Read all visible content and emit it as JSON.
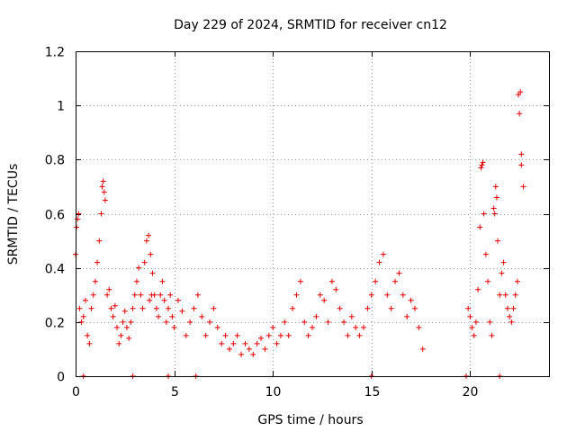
{
  "chart_data": {
    "type": "scatter",
    "title": "Day 229 of 2024, SRMTID for receiver cn12",
    "xlabel": "GPS time / hours",
    "ylabel": "SRMTID / TECUs",
    "xlim": [
      0,
      24
    ],
    "ylim": [
      0,
      1.2
    ],
    "xticks": [
      0,
      5,
      10,
      15,
      20
    ],
    "xtick_labels": [
      "0",
      "5",
      "10",
      "15",
      "20"
    ],
    "yticks": [
      0,
      0.2,
      0.4,
      0.6,
      0.8,
      1.0,
      1.2
    ],
    "ytick_labels": [
      "0",
      "0.2",
      "0.4",
      "0.6",
      "0.8",
      "1",
      "1.2"
    ],
    "grid": true,
    "marker": "plus",
    "color": "#e00000",
    "series": [
      {
        "name": "SRMTID",
        "x": [
          0.0,
          0.1,
          0.2,
          0.3,
          0.4,
          0.5,
          0.6,
          0.7,
          0.8,
          0.9,
          1.0,
          1.1,
          1.2,
          1.3,
          1.4,
          1.5,
          1.6,
          1.7,
          1.8,
          1.9,
          2.0,
          2.1,
          2.2,
          2.3,
          2.4,
          2.5,
          2.6,
          2.7,
          2.8,
          2.9,
          3.0,
          3.1,
          3.2,
          3.3,
          3.4,
          3.5,
          3.6,
          3.7,
          3.8,
          3.9,
          4.0,
          4.1,
          4.2,
          4.3,
          4.4,
          4.5,
          4.6,
          4.7,
          4.8,
          4.9,
          5.0,
          5.2,
          5.4,
          5.6,
          5.8,
          6.0,
          6.2,
          6.4,
          6.6,
          6.8,
          7.0,
          7.2,
          7.4,
          7.6,
          7.8,
          8.0,
          8.2,
          8.4,
          8.6,
          8.8,
          9.0,
          9.2,
          9.4,
          9.6,
          9.8,
          10.0,
          10.2,
          10.4,
          10.6,
          10.8,
          11.0,
          11.2,
          11.4,
          11.6,
          11.8,
          12.0,
          12.2,
          12.4,
          12.6,
          12.8,
          13.0,
          13.2,
          13.4,
          13.6,
          13.8,
          14.0,
          14.2,
          14.4,
          14.6,
          14.8,
          15.0,
          15.2,
          15.4,
          15.6,
          15.8,
          16.0,
          16.2,
          16.4,
          16.6,
          16.8,
          17.0,
          17.2,
          17.4,
          17.6,
          19.9,
          20.0,
          20.1,
          20.2,
          20.3,
          20.4,
          20.5,
          20.6,
          20.7,
          20.8,
          20.9,
          21.0,
          21.1,
          21.2,
          21.3,
          21.4,
          21.5,
          21.6,
          21.7,
          21.8,
          21.9,
          22.0,
          22.1,
          22.2,
          22.3,
          22.4,
          22.5,
          22.6,
          22.7,
          0.05,
          0.15,
          1.35,
          1.45,
          3.75,
          3.85,
          20.55,
          20.65,
          21.25,
          21.35,
          22.45,
          22.55,
          22.6,
          0.4,
          2.9,
          4.7,
          6.1,
          15.0,
          19.8,
          21.5
        ],
        "y": [
          0.45,
          0.58,
          0.25,
          0.2,
          0.22,
          0.28,
          0.15,
          0.12,
          0.25,
          0.3,
          0.35,
          0.42,
          0.5,
          0.6,
          0.72,
          0.65,
          0.3,
          0.32,
          0.25,
          0.22,
          0.26,
          0.18,
          0.12,
          0.15,
          0.2,
          0.24,
          0.18,
          0.14,
          0.2,
          0.25,
          0.3,
          0.35,
          0.4,
          0.3,
          0.25,
          0.42,
          0.5,
          0.52,
          0.45,
          0.38,
          0.3,
          0.25,
          0.22,
          0.3,
          0.35,
          0.28,
          0.2,
          0.25,
          0.3,
          0.22,
          0.18,
          0.28,
          0.24,
          0.15,
          0.2,
          0.25,
          0.3,
          0.22,
          0.15,
          0.2,
          0.25,
          0.18,
          0.12,
          0.15,
          0.1,
          0.12,
          0.15,
          0.08,
          0.12,
          0.1,
          0.08,
          0.12,
          0.14,
          0.1,
          0.15,
          0.18,
          0.12,
          0.15,
          0.2,
          0.15,
          0.25,
          0.3,
          0.35,
          0.2,
          0.15,
          0.18,
          0.22,
          0.3,
          0.28,
          0.2,
          0.35,
          0.32,
          0.25,
          0.2,
          0.15,
          0.22,
          0.18,
          0.15,
          0.18,
          0.25,
          0.3,
          0.35,
          0.42,
          0.45,
          0.3,
          0.25,
          0.35,
          0.38,
          0.3,
          0.22,
          0.28,
          0.25,
          0.18,
          0.1,
          0.25,
          0.22,
          0.18,
          0.15,
          0.2,
          0.32,
          0.55,
          0.78,
          0.6,
          0.45,
          0.35,
          0.2,
          0.15,
          0.62,
          0.7,
          0.5,
          0.3,
          0.38,
          0.42,
          0.3,
          0.25,
          0.22,
          0.2,
          0.25,
          0.3,
          0.35,
          0.97,
          0.78,
          0.7,
          0.55,
          0.6,
          0.7,
          0.68,
          0.28,
          0.3,
          0.77,
          0.79,
          0.6,
          0.66,
          1.04,
          1.05,
          0.82,
          0.0,
          0.0,
          0.0,
          0.0,
          0.0,
          0.0,
          0.0
        ]
      }
    ]
  }
}
